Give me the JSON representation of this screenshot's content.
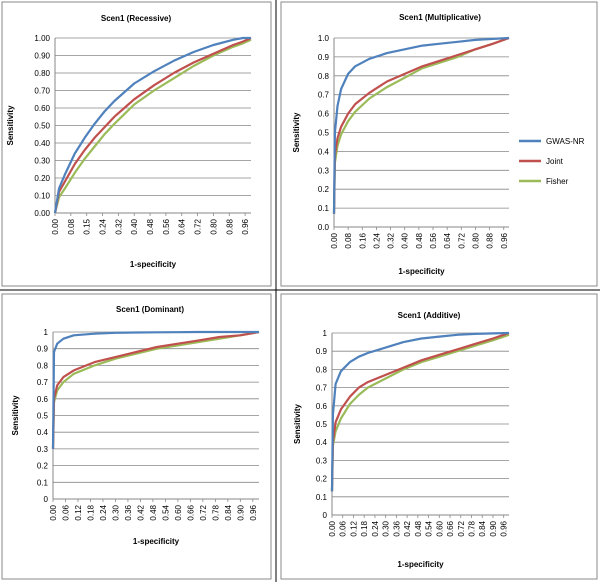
{
  "legend": [
    {
      "name": "GWAS-NR",
      "color": "#4f81bd"
    },
    {
      "name": "Joint",
      "color": "#c0504d"
    },
    {
      "name": "Fisher",
      "color": "#9bbb59"
    }
  ],
  "chart_data": [
    {
      "type": "line",
      "title": "Scen1 (Recessive)",
      "xlabel": "1-specificity",
      "ylabel": "Sensitivity",
      "xlim": [
        0,
        0.99
      ],
      "ylim": [
        0,
        1
      ],
      "ytick_labels": [
        "0.00",
        "0.10",
        "0.20",
        "0.30",
        "0.40",
        "0.50",
        "0.60",
        "0.70",
        "0.80",
        "0.90",
        "1.00"
      ],
      "xtick_labels": [
        "0.00",
        "0.08",
        "0.15",
        "0.24",
        "0.32",
        "0.40",
        "0.48",
        "0.56",
        "0.64",
        "0.72",
        "0.80",
        "0.88",
        "0.96"
      ],
      "grid": "horizontal",
      "x": [
        0,
        0.02,
        0.05,
        0.1,
        0.15,
        0.2,
        0.25,
        0.3,
        0.4,
        0.5,
        0.6,
        0.7,
        0.8,
        0.9,
        0.95,
        0.99
      ],
      "series": [
        {
          "name": "GWAS-NR",
          "values": [
            0,
            0.14,
            0.22,
            0.34,
            0.43,
            0.51,
            0.58,
            0.64,
            0.74,
            0.81,
            0.87,
            0.92,
            0.96,
            0.99,
            1.0,
            1.0
          ]
        },
        {
          "name": "Joint",
          "values": [
            0,
            0.12,
            0.18,
            0.28,
            0.36,
            0.43,
            0.49,
            0.55,
            0.65,
            0.73,
            0.8,
            0.86,
            0.91,
            0.96,
            0.98,
            1.0
          ]
        },
        {
          "name": "Fisher",
          "values": [
            0,
            0.09,
            0.14,
            0.23,
            0.31,
            0.38,
            0.45,
            0.51,
            0.62,
            0.7,
            0.77,
            0.84,
            0.9,
            0.95,
            0.97,
            0.99
          ]
        }
      ]
    },
    {
      "type": "line",
      "title": "Scen1 (Multiplicative)",
      "xlabel": "1-specificity",
      "ylabel": "Sensitivity",
      "xlim": [
        0,
        0.99
      ],
      "ylim": [
        0,
        1
      ],
      "ytick_labels": [
        "0.0",
        "0.1",
        "0.2",
        "0.3",
        "0.4",
        "0.5",
        "0.6",
        "0.7",
        "0.8",
        "0.9",
        "1.0"
      ],
      "xtick_labels": [
        "0.00",
        "0.08",
        "0.16",
        "0.24",
        "0.32",
        "0.40",
        "0.48",
        "0.56",
        "0.64",
        "0.72",
        "0.80",
        "0.88",
        "0.96"
      ],
      "grid": "horizontal",
      "x": [
        0,
        0.005,
        0.02,
        0.04,
        0.08,
        0.12,
        0.2,
        0.3,
        0.4,
        0.5,
        0.6,
        0.7,
        0.8,
        0.9,
        0.99
      ],
      "series": [
        {
          "name": "GWAS-NR",
          "values": [
            0.07,
            0.5,
            0.64,
            0.73,
            0.81,
            0.85,
            0.89,
            0.92,
            0.94,
            0.96,
            0.97,
            0.98,
            0.99,
            0.995,
            1.0
          ]
        },
        {
          "name": "Joint",
          "values": [
            0.07,
            0.38,
            0.47,
            0.53,
            0.6,
            0.65,
            0.71,
            0.77,
            0.81,
            0.85,
            0.88,
            0.91,
            0.94,
            0.97,
            1.0
          ]
        },
        {
          "name": "Fisher",
          "values": [
            0.07,
            0.34,
            0.43,
            0.49,
            0.56,
            0.61,
            0.68,
            0.74,
            0.79,
            0.84,
            0.87,
            0.9,
            0.94,
            0.97,
            1.0
          ]
        }
      ]
    },
    {
      "type": "line",
      "title": "Scen1 (Dominant)",
      "xlabel": "1-specificity",
      "ylabel": "Sensitivity",
      "xlim": [
        0,
        0.99
      ],
      "ylim": [
        0,
        1
      ],
      "ytick_labels": [
        "0",
        "0.1",
        "0.2",
        "0.3",
        "0.4",
        "0.5",
        "0.6",
        "0.7",
        "0.8",
        "0.9",
        "1"
      ],
      "xtick_labels": [
        "0.00",
        "0.06",
        "0.12",
        "0.18",
        "0.24",
        "0.30",
        "0.36",
        "0.42",
        "0.48",
        "0.54",
        "0.60",
        "0.66",
        "0.72",
        "0.78",
        "0.84",
        "0.90",
        "0.96"
      ],
      "grid": "horizontal",
      "x": [
        0,
        0.005,
        0.02,
        0.05,
        0.1,
        0.2,
        0.3,
        0.4,
        0.5,
        0.6,
        0.7,
        0.8,
        0.9,
        0.99
      ],
      "series": [
        {
          "name": "GWAS-NR",
          "values": [
            0.3,
            0.88,
            0.93,
            0.96,
            0.98,
            0.99,
            0.995,
            0.997,
            0.998,
            0.999,
            1.0,
            1.0,
            1.0,
            1.0
          ]
        },
        {
          "name": "Joint",
          "values": [
            0.3,
            0.6,
            0.68,
            0.73,
            0.77,
            0.82,
            0.85,
            0.88,
            0.91,
            0.93,
            0.95,
            0.97,
            0.98,
            1.0
          ]
        },
        {
          "name": "Fisher",
          "values": [
            0.3,
            0.58,
            0.65,
            0.7,
            0.75,
            0.8,
            0.84,
            0.87,
            0.9,
            0.92,
            0.94,
            0.96,
            0.98,
            1.0
          ]
        }
      ]
    },
    {
      "type": "line",
      "title": "Scen1 (Additive)",
      "xlabel": "1-specificity",
      "ylabel": "Sensitivity",
      "xlim": [
        0,
        0.99
      ],
      "ylim": [
        0,
        1
      ],
      "ytick_labels": [
        "0",
        "0.1",
        "0.2",
        "0.3",
        "0.4",
        "0.5",
        "0.6",
        "0.7",
        "0.8",
        "0.9",
        "1"
      ],
      "xtick_labels": [
        "0.00",
        "0.06",
        "0.12",
        "0.18",
        "0.24",
        "0.30",
        "0.36",
        "0.42",
        "0.48",
        "0.54",
        "0.60",
        "0.66",
        "0.72",
        "0.78",
        "0.84",
        "0.90",
        "0.96"
      ],
      "grid": "horizontal",
      "x": [
        0,
        0.005,
        0.02,
        0.05,
        0.1,
        0.15,
        0.2,
        0.3,
        0.4,
        0.5,
        0.6,
        0.7,
        0.8,
        0.9,
        0.99
      ],
      "series": [
        {
          "name": "GWAS-NR",
          "values": [
            0.13,
            0.55,
            0.72,
            0.79,
            0.84,
            0.87,
            0.89,
            0.92,
            0.95,
            0.97,
            0.98,
            0.99,
            0.995,
            0.998,
            1.0
          ]
        },
        {
          "name": "Joint",
          "values": [
            0.13,
            0.4,
            0.51,
            0.58,
            0.65,
            0.7,
            0.73,
            0.77,
            0.81,
            0.85,
            0.88,
            0.91,
            0.94,
            0.97,
            1.0
          ]
        },
        {
          "name": "Fisher",
          "values": [
            0.13,
            0.38,
            0.46,
            0.53,
            0.61,
            0.66,
            0.7,
            0.75,
            0.8,
            0.84,
            0.87,
            0.9,
            0.93,
            0.96,
            0.99
          ]
        }
      ]
    }
  ]
}
